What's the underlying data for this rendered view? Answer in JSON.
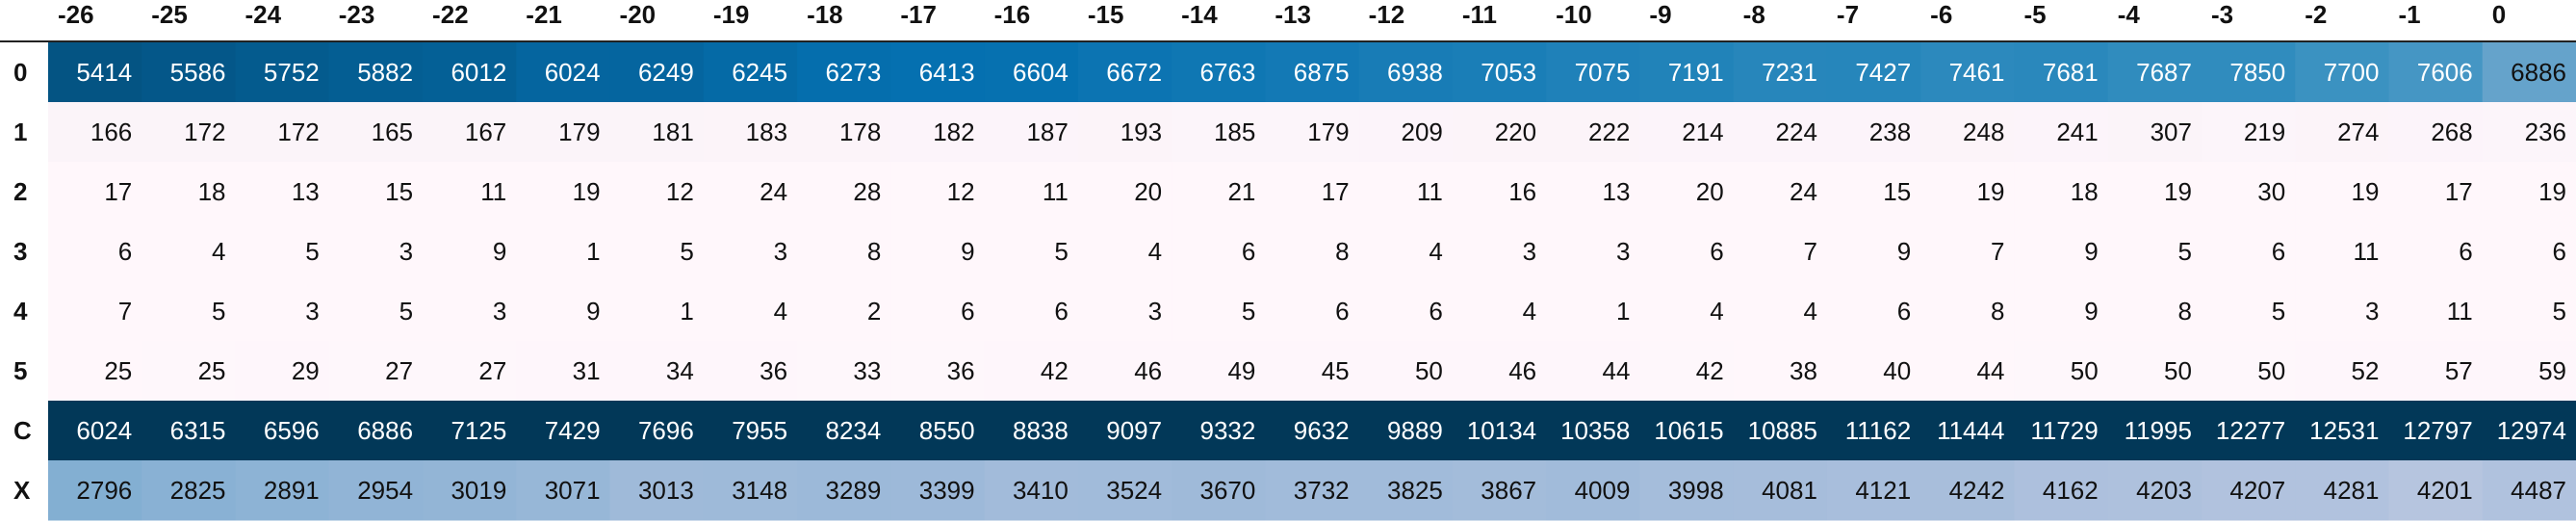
{
  "chart_data": {
    "type": "heatmap",
    "columns": [
      "-26",
      "-25",
      "-24",
      "-23",
      "-22",
      "-21",
      "-20",
      "-19",
      "-18",
      "-17",
      "-16",
      "-15",
      "-14",
      "-13",
      "-12",
      "-11",
      "-10",
      "-9",
      "-8",
      "-7",
      "-6",
      "-5",
      "-4",
      "-3",
      "-2",
      "-1",
      "0"
    ],
    "rows": [
      {
        "label": "0",
        "values": [
          5414,
          5586,
          5752,
          5882,
          6012,
          6024,
          6249,
          6245,
          6273,
          6413,
          6604,
          6672,
          6763,
          6875,
          6938,
          7053,
          7075,
          7191,
          7231,
          7427,
          7461,
          7681,
          7687,
          7850,
          7700,
          7606,
          6886
        ]
      },
      {
        "label": "1",
        "values": [
          166,
          172,
          172,
          165,
          167,
          179,
          181,
          183,
          178,
          182,
          187,
          193,
          185,
          179,
          209,
          220,
          222,
          214,
          224,
          238,
          248,
          241,
          307,
          219,
          274,
          268,
          236
        ]
      },
      {
        "label": "2",
        "values": [
          17,
          18,
          13,
          15,
          11,
          19,
          12,
          24,
          28,
          12,
          11,
          20,
          21,
          17,
          11,
          16,
          13,
          20,
          24,
          15,
          19,
          18,
          19,
          30,
          19,
          17,
          19
        ]
      },
      {
        "label": "3",
        "values": [
          6,
          4,
          5,
          3,
          9,
          1,
          5,
          3,
          8,
          9,
          5,
          4,
          6,
          8,
          4,
          3,
          3,
          6,
          7,
          9,
          7,
          9,
          5,
          6,
          11,
          6,
          6
        ]
      },
      {
        "label": "4",
        "values": [
          7,
          5,
          3,
          5,
          3,
          9,
          1,
          4,
          2,
          6,
          6,
          3,
          5,
          6,
          6,
          4,
          1,
          4,
          4,
          6,
          8,
          9,
          8,
          5,
          3,
          11,
          5
        ]
      },
      {
        "label": "5",
        "values": [
          25,
          25,
          29,
          27,
          27,
          31,
          34,
          36,
          33,
          36,
          42,
          46,
          49,
          45,
          50,
          46,
          44,
          42,
          38,
          40,
          44,
          50,
          50,
          50,
          52,
          57,
          59
        ]
      },
      {
        "label": "C",
        "values": [
          6024,
          6315,
          6596,
          6886,
          7125,
          7429,
          7696,
          7955,
          8234,
          8550,
          8838,
          9097,
          9332,
          9632,
          9889,
          10134,
          10358,
          10615,
          10885,
          11162,
          11444,
          11729,
          11995,
          12277,
          12531,
          12797,
          12974
        ]
      },
      {
        "label": "X",
        "values": [
          2796,
          2825,
          2891,
          2954,
          3019,
          3071,
          3013,
          3148,
          3289,
          3399,
          3410,
          3524,
          3670,
          3732,
          3825,
          3867,
          4009,
          3998,
          4081,
          4121,
          4242,
          4162,
          4203,
          4207,
          4281,
          4201,
          4487
        ]
      }
    ],
    "color_scale": "per-column gradient: light (#fff7fb) to dark blue (#023858)",
    "colors": {
      "low": "#fff7fb",
      "mid": "#74a9cf",
      "high": "#023858",
      "text_dark": "#111111",
      "text_light": "#ffffff"
    }
  }
}
